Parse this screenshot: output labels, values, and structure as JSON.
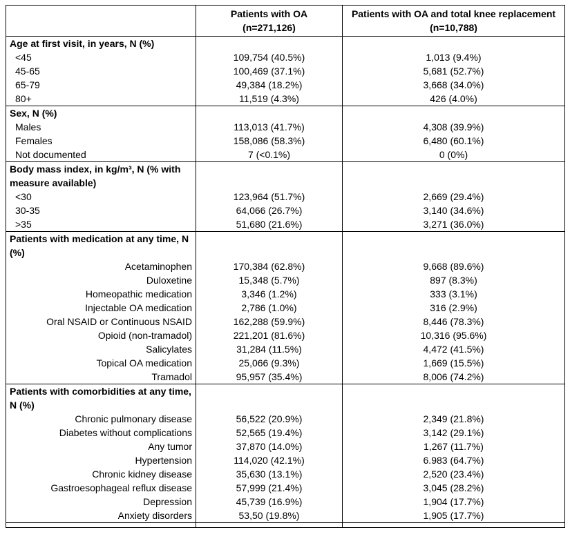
{
  "table": {
    "columns": [
      {
        "label": ""
      },
      {
        "label": "Patients with OA\n(n=271,126)"
      },
      {
        "label": "Patients with OA and total knee replacement\n(n=10,788)"
      }
    ],
    "sections": [
      {
        "id": "age",
        "header": "Age at first visit, in years, N (%)",
        "label_align": "left",
        "rows": [
          {
            "label": "<45",
            "oa": "109,754 (40.5%)",
            "tkr": "1,013 (9.4%)"
          },
          {
            "label": "45-65",
            "oa": "100,469 (37.1%)",
            "tkr": "5,681 (52.7%)"
          },
          {
            "label": "65-79",
            "oa": "49,384 (18.2%)",
            "tkr": "3,668 (34.0%)"
          },
          {
            "label": "80+",
            "oa": "11,519 (4.3%)",
            "tkr": "426 (4.0%)"
          }
        ]
      },
      {
        "id": "sex",
        "header": "Sex, N (%)",
        "label_align": "left",
        "rows": [
          {
            "label": "Males",
            "oa": "113,013 (41.7%)",
            "tkr": "4,308 (39.9%)"
          },
          {
            "label": "Females",
            "oa": "158,086 (58.3%)",
            "tkr": "6,480 (60.1%)"
          },
          {
            "label": "Not documented",
            "oa": "7 (<0.1%)",
            "tkr": "0 (0%)"
          }
        ]
      },
      {
        "id": "bmi",
        "header": "Body mass index, in kg/m³, N (% with measure available)",
        "label_align": "left",
        "rows": [
          {
            "label": "<30",
            "oa": "123,964 (51.7%)",
            "tkr": "2,669 (29.4%)"
          },
          {
            "label": "30-35",
            "oa": "64,066 (26.7%)",
            "tkr": "3,140 (34.6%)"
          },
          {
            "label": ">35",
            "oa": "51,680 (21.6%)",
            "tkr": "3,271 (36.0%)"
          }
        ]
      },
      {
        "id": "medication",
        "header": "Patients with medication at any time, N (%)",
        "label_align": "right",
        "rows": [
          {
            "label": "Acetaminophen",
            "oa": "170,384 (62.8%)",
            "tkr": "9,668 (89.6%)"
          },
          {
            "label": "Duloxetine",
            "oa": "15,348 (5.7%)",
            "tkr": "897 (8.3%)"
          },
          {
            "label": "Homeopathic medication",
            "oa": "3,346 (1.2%)",
            "tkr": "333 (3.1%)"
          },
          {
            "label": "Injectable OA medication",
            "oa": "2,786 (1.0%)",
            "tkr": "316 (2.9%)"
          },
          {
            "label": "Oral NSAID or Continuous NSAID",
            "oa": "162,288 (59.9%)",
            "tkr": "8,446 (78.3%)"
          },
          {
            "label": "Opioid (non-tramadol)",
            "oa": "221,201 (81.6%)",
            "tkr": "10,316 (95.6%)"
          },
          {
            "label": "Salicylates",
            "oa": "31,284 (11.5%)",
            "tkr": "4,472 (41.5%)"
          },
          {
            "label": "Topical OA medication",
            "oa": "25,066 (9.3%)",
            "tkr": "1,669 (15.5%)"
          },
          {
            "label": "Tramadol",
            "oa": "95,957 (35.4%)",
            "tkr": "8,006 (74.2%)"
          }
        ]
      },
      {
        "id": "comorbidities",
        "header": "Patients with comorbidities at any time, N (%)",
        "label_align": "right",
        "rows": [
          {
            "label": "Chronic pulmonary disease",
            "oa": "56,522 (20.9%)",
            "tkr": "2,349 (21.8%)"
          },
          {
            "label": "Diabetes without complications",
            "oa": "52,565 (19.4%)",
            "tkr": "3,142 (29.1%)"
          },
          {
            "label": "Any tumor",
            "oa": "37,870 (14.0%)",
            "tkr": "1,267 (11.7%)"
          },
          {
            "label": "Hypertension",
            "oa": "114,020 (42.1%)",
            "tkr": "6.983 (64.7%)"
          },
          {
            "label": "Chronic kidney disease",
            "oa": "35,630 (13.1%)",
            "tkr": "2,520 (23.4%)"
          },
          {
            "label": "Gastroesophageal reflux disease",
            "oa": "57,999 (21.4%)",
            "tkr": "3,045 (28.2%)"
          },
          {
            "label": "Depression",
            "oa": "45,739 (16.9%)",
            "tkr": "1,904 (17.7%)"
          },
          {
            "label": "Anxiety disorders",
            "oa": "53,50 (19.8%)",
            "tkr": "1,905 (17.7%)"
          }
        ]
      }
    ]
  }
}
